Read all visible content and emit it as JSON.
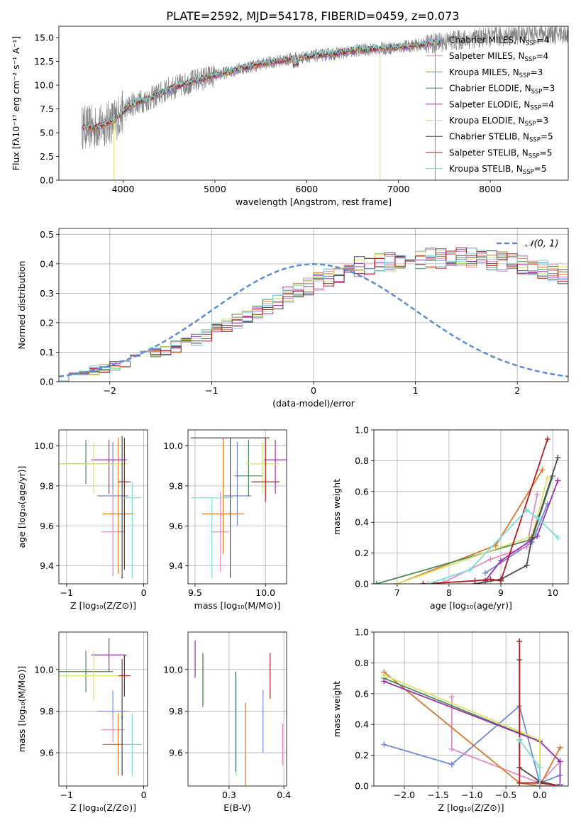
{
  "figure": {
    "title": "PLATE=2592, MJD=54178, FIBERID=0459, z=0.073"
  },
  "models": [
    {
      "name": "Chabrier MILES",
      "nssp": "4",
      "color": "#6f89d8"
    },
    {
      "name": "Salpeter MILES",
      "nssp": "4",
      "color": "#e88bc0"
    },
    {
      "name": "Kroupa MILES",
      "nssp": "3",
      "color": "#d9782c"
    },
    {
      "name": "Chabrier ELODIE",
      "nssp": "3",
      "color": "#4c8a5a"
    },
    {
      "name": "Salpeter ELODIE",
      "nssp": "4",
      "color": "#9b30b0"
    },
    {
      "name": "Kroupa ELODIE",
      "nssp": "3",
      "color": "#d8e46a"
    },
    {
      "name": "Chabrier STELIB",
      "nssp": "5",
      "color": "#4a4a4a"
    },
    {
      "name": "Salpeter STELIB",
      "nssp": "5",
      "color": "#b01e1e"
    },
    {
      "name": "Kroupa STELIB",
      "nssp": "5",
      "color": "#7fd8dc"
    }
  ],
  "chart_data": [
    {
      "id": "spectrum",
      "type": "line",
      "xlabel": "wavelength [Angstrom, rest frame]",
      "ylabel": "Flux [fλ10⁻¹⁷ erg cm⁻² s⁻¹ A⁻¹]",
      "xlim": [
        3300,
        8850
      ],
      "ylim": [
        0,
        16.2
      ],
      "xticks": [
        4000,
        5000,
        6000,
        7000,
        8000
      ],
      "yticks": [
        0.0,
        2.5,
        5.0,
        7.5,
        10.0,
        12.5,
        15.0
      ],
      "observed_color": "#808080",
      "model_continuum": {
        "x": [
          3550,
          3700,
          3900,
          4000,
          4100,
          4300,
          4500,
          4800,
          5000,
          5300,
          5600,
          6000,
          6300,
          6600,
          7000,
          7300,
          7500,
          7700,
          7900,
          8100,
          8300,
          8500
        ],
        "y": [
          5.6,
          5.5,
          6.3,
          7.2,
          8.0,
          8.6,
          9.6,
          10.5,
          11.0,
          11.8,
          12.4,
          13.0,
          13.3,
          13.7,
          14.0,
          14.3,
          14.6,
          14.8,
          15.0,
          15.1,
          15.3,
          15.4
        ]
      }
    },
    {
      "id": "residuals",
      "type": "bar",
      "xlabel": "(data-model)/error",
      "ylabel": "Normed distribution",
      "legend": "𝒩(0, 1)",
      "legend_position": "top-right",
      "xlim": [
        -2.5,
        2.5
      ],
      "ylim": [
        0,
        0.52
      ],
      "xticks": [
        -2,
        -1,
        0,
        1,
        2
      ],
      "yticks": [
        0.0,
        0.1,
        0.2,
        0.3,
        0.4,
        0.5
      ],
      "bin_width": 0.1,
      "bin_start": -2.5,
      "heights": [
        0.018,
        0.022,
        0.03,
        0.038,
        0.045,
        0.055,
        0.068,
        0.078,
        0.087,
        0.095,
        0.105,
        0.118,
        0.13,
        0.145,
        0.16,
        0.175,
        0.19,
        0.205,
        0.222,
        0.24,
        0.258,
        0.275,
        0.292,
        0.31,
        0.325,
        0.34,
        0.355,
        0.368,
        0.38,
        0.39,
        0.398,
        0.403,
        0.408,
        0.412,
        0.415,
        0.418,
        0.42,
        0.421,
        0.421,
        0.42,
        0.42,
        0.418,
        0.415,
        0.41,
        0.405,
        0.4,
        0.392,
        0.382,
        0.37,
        0.358,
        0.345,
        0.33,
        0.315,
        0.3,
        0.285,
        0.27,
        0.255,
        0.24,
        0.224,
        0.208,
        0.192,
        0.176,
        0.16,
        0.145,
        0.13,
        0.118,
        0.105,
        0.094,
        0.084,
        0.074,
        0.066,
        0.058,
        0.052,
        0.046,
        0.041,
        0.037,
        0.033,
        0.03,
        0.027,
        0.025
      ],
      "line_color": "#5b8bd9"
    },
    {
      "id": "age-vs-z",
      "type": "scatter",
      "xlabel": "Z [log₁₀(Z/Z⊙)]",
      "ylabel": "age  [log₁₀(age/yr)]",
      "xlim": [
        -1.1,
        0.05
      ],
      "ylim": [
        9.31,
        10.08
      ],
      "xticks": [
        -1,
        0
      ],
      "yticks": [
        9.4,
        9.6,
        9.8,
        10.0
      ],
      "points": [
        {
          "x": -0.4,
          "y": 9.75,
          "xerr": 0.2,
          "yerr_lo": 0.4,
          "yerr_hi": 0.27
        },
        {
          "x": -0.4,
          "y": 9.57,
          "xerr": 0.15,
          "yerr_lo": 0.21,
          "yerr_hi": 0.21
        },
        {
          "x": -0.33,
          "y": 9.66,
          "xerr": 0.2,
          "yerr_lo": 0.3,
          "yerr_hi": 0.38
        },
        {
          "x": -0.75,
          "y": 9.91,
          "xerr": 0.35,
          "yerr_lo": 0.1,
          "yerr_hi": 0.12
        },
        {
          "x": -0.45,
          "y": 9.93,
          "xerr": 0.23,
          "yerr_lo": 0.17,
          "yerr_hi": 0.1
        },
        {
          "x": -0.65,
          "y": 9.91,
          "xerr": 0.45,
          "yerr_lo": 0.15,
          "yerr_hi": 0.11
        },
        {
          "x": -0.28,
          "y": 9.34,
          "xerr": 0.01,
          "yerr_lo": 0.0,
          "yerr_hi": 0.71
        },
        {
          "x": -0.25,
          "y": 9.82,
          "xerr": 0.08,
          "yerr_lo": 0.44,
          "yerr_hi": 0.22
        },
        {
          "x": -0.15,
          "y": 9.74,
          "xerr": 0.12,
          "yerr_lo": 0.4,
          "yerr_hi": 0.08
        }
      ]
    },
    {
      "id": "age-vs-mass",
      "type": "scatter",
      "xlabel": "mass [log₁₀(M/M⊙)]",
      "ylabel": "",
      "xlim": [
        9.45,
        10.15
      ],
      "ylim": [
        9.31,
        10.08
      ],
      "xticks": [
        9.5,
        10.0
      ],
      "yticks": [
        9.4,
        9.6,
        9.8,
        10.0
      ],
      "points": [
        {
          "x": 9.8,
          "y": 9.75,
          "xerr": 0.1,
          "yerr_lo": 0.15,
          "yerr_hi": 0.27
        },
        {
          "x": 9.68,
          "y": 9.57,
          "xerr": 0.06,
          "yerr_lo": 0.2,
          "yerr_hi": 0.2
        },
        {
          "x": 9.7,
          "y": 9.66,
          "xerr": 0.15,
          "yerr_lo": 0.2,
          "yerr_hi": 0.38
        },
        {
          "x": 9.88,
          "y": 9.85,
          "xerr": 0.1,
          "yerr_lo": 0.1,
          "yerr_hi": 0.18
        },
        {
          "x": 10.07,
          "y": 9.93,
          "xerr": 0.08,
          "yerr_lo": 0.17,
          "yerr_hi": 0.1
        },
        {
          "x": 9.98,
          "y": 9.91,
          "xerr": 0.12,
          "yerr_lo": 0.15,
          "yerr_hi": 0.11
        },
        {
          "x": 9.75,
          "y": 10.04,
          "xerr": 0.28,
          "yerr_lo": 0.7,
          "yerr_hi": 0.0
        },
        {
          "x": 10.0,
          "y": 9.82,
          "xerr": 0.1,
          "yerr_lo": 0.1,
          "yerr_hi": 0.22
        },
        {
          "x": 9.62,
          "y": 9.74,
          "xerr": 0.15,
          "yerr_lo": 0.4,
          "yerr_hi": 0.0
        }
      ]
    },
    {
      "id": "mass-weight-vs-age",
      "type": "line",
      "xlabel": "age  [log₁₀(age/yr)]",
      "ylabel": "mass weight",
      "xlim": [
        6.55,
        10.3
      ],
      "ylim": [
        0,
        1.0
      ],
      "xticks": [
        7,
        8,
        9,
        10
      ],
      "yticks": [
        0.0,
        0.2,
        0.4,
        0.6,
        0.8,
        1.0
      ],
      "series": [
        {
          "x": [
            8.7,
            9.6,
            9.9
          ],
          "y": [
            0.07,
            0.27,
            0.52
          ]
        },
        {
          "x": [
            7.9,
            8.8,
            9.5,
            9.7
          ],
          "y": [
            0.01,
            0.16,
            0.24,
            0.58
          ]
        },
        {
          "x": [
            7.0,
            8.9,
            9.8
          ],
          "y": [
            0.0,
            0.25,
            0.74
          ]
        },
        {
          "x": [
            6.6,
            9.6,
            10.0
          ],
          "y": [
            0.0,
            0.29,
            0.7
          ]
        },
        {
          "x": [
            8.7,
            9.0,
            9.7,
            10.1
          ],
          "y": [
            0.02,
            0.15,
            0.31,
            0.67
          ]
        },
        {
          "x": [
            7.0,
            9.6,
            9.9
          ],
          "y": [
            0.0,
            0.31,
            0.69
          ]
        },
        {
          "x": [
            8.5,
            9.0,
            9.5,
            9.6,
            10.1
          ],
          "y": [
            0.0,
            0.03,
            0.12,
            0.3,
            0.82
          ]
        },
        {
          "x": [
            7.5,
            8.5,
            8.8,
            9.0,
            9.9
          ],
          "y": [
            0.0,
            0.02,
            0.03,
            0.02,
            0.94
          ]
        },
        {
          "x": [
            7.6,
            8.4,
            9.5,
            9.7,
            10.1
          ],
          "y": [
            0.0,
            0.09,
            0.48,
            0.43,
            0.3
          ]
        }
      ]
    },
    {
      "id": "mass-vs-z",
      "type": "scatter",
      "xlabel": "Z [log₁₀(Z/Z⊙)]",
      "ylabel": "mass [log₁₀(M/M⊙)]",
      "xlim": [
        -1.1,
        0.05
      ],
      "ylim": [
        9.44,
        10.18
      ],
      "xticks": [
        -1,
        0
      ],
      "yticks": [
        9.6,
        9.8,
        10.0
      ],
      "points": [
        {
          "x": -0.4,
          "y": 9.8,
          "xerr": 0.2,
          "yerr": 0.1
        },
        {
          "x": -0.4,
          "y": 9.71,
          "xerr": 0.15,
          "yerr": 0.06
        },
        {
          "x": -0.33,
          "y": 9.64,
          "xerr": 0.2,
          "yerr": 0.15
        },
        {
          "x": -0.75,
          "y": 9.99,
          "xerr": 0.35,
          "yerr": 0.1
        },
        {
          "x": -0.45,
          "y": 10.07,
          "xerr": 0.23,
          "yerr": 0.08
        },
        {
          "x": -0.65,
          "y": 9.97,
          "xerr": 0.45,
          "yerr": 0.12
        },
        {
          "x": -0.28,
          "y": 9.77,
          "xerr": 0.01,
          "yerr": 0.28
        },
        {
          "x": -0.25,
          "y": 9.97,
          "xerr": 0.08,
          "yerr": 0.1
        },
        {
          "x": -0.15,
          "y": 9.64,
          "xerr": 0.12,
          "yerr": 0.15
        }
      ]
    },
    {
      "id": "mass-vs-ebv",
      "type": "scatter",
      "xlabel": "E(B-V)",
      "ylabel": "",
      "xlim": [
        0.225,
        0.405
      ],
      "ylim": [
        9.44,
        10.18
      ],
      "xticks": [
        0.3,
        0.4
      ],
      "yticks": [
        9.6,
        9.8,
        10.0
      ],
      "points": [
        {
          "x": 0.362,
          "y": 9.75,
          "yerr": 0.15
        },
        {
          "x": 0.398,
          "y": 9.64,
          "yerr": 0.1
        },
        {
          "x": 0.33,
          "y": 9.64,
          "yerr": 0.2
        },
        {
          "x": 0.252,
          "y": 9.95,
          "yerr": 0.13
        },
        {
          "x": 0.238,
          "y": 10.05,
          "yerr": 0.09
        },
        {
          "x": 0.254,
          "y": 9.95,
          "yerr": 0.12
        },
        {
          "x": 0.312,
          "y": 9.75,
          "yerr": 0.24
        },
        {
          "x": 0.375,
          "y": 9.97,
          "yerr": 0.11
        },
        {
          "x": 0.313,
          "y": 9.73,
          "yerr": 0.24
        }
      ]
    },
    {
      "id": "mass-weight-vs-z",
      "type": "line",
      "xlabel": "Z [log₁₀(Z/Z⊙)]",
      "ylabel": "mass weight",
      "xlim": [
        -2.45,
        0.42
      ],
      "ylim": [
        0,
        1.0
      ],
      "xticks": [
        -2.0,
        -1.5,
        -1.0,
        -0.5,
        0.0
      ],
      "yticks": [
        0.0,
        0.2,
        0.4,
        0.6,
        0.8,
        1.0
      ],
      "series": [
        {
          "x": [
            -2.3,
            -1.3,
            -0.3,
            0.0,
            0.3
          ],
          "y": [
            0.27,
            0.14,
            0.52,
            0.02,
            0.07
          ]
        },
        {
          "x": [
            -1.3,
            -1.3,
            0.0,
            0.3
          ],
          "y": [
            0.58,
            0.24,
            0.02,
            0.16
          ]
        },
        {
          "x": [
            -2.3,
            -0.3,
            0.0,
            0.3
          ],
          "y": [
            0.74,
            0.02,
            0.0,
            0.25
          ]
        },
        {
          "x": [
            -2.3,
            0.0,
            0.0
          ],
          "y": [
            0.7,
            0.29,
            0.0
          ]
        },
        {
          "x": [
            -2.3,
            0.0,
            0.3,
            0.3
          ],
          "y": [
            0.68,
            0.29,
            0.16,
            0.01
          ]
        },
        {
          "x": [
            -2.3,
            0.0,
            0.0
          ],
          "y": [
            0.72,
            0.3,
            0.0
          ]
        },
        {
          "x": [
            -0.3,
            -0.3,
            -0.3,
            0.0,
            0.3
          ],
          "y": [
            0.82,
            0.3,
            0.12,
            0.03,
            0.0
          ]
        },
        {
          "x": [
            -0.3,
            -0.3,
            0.0,
            0.3
          ],
          "y": [
            0.94,
            0.02,
            0.02,
            0.0
          ]
        },
        {
          "x": [
            -0.3,
            0.0,
            0.0,
            0.3
          ],
          "y": [
            0.3,
            0.12,
            0.0,
            0.0
          ]
        }
      ]
    }
  ]
}
